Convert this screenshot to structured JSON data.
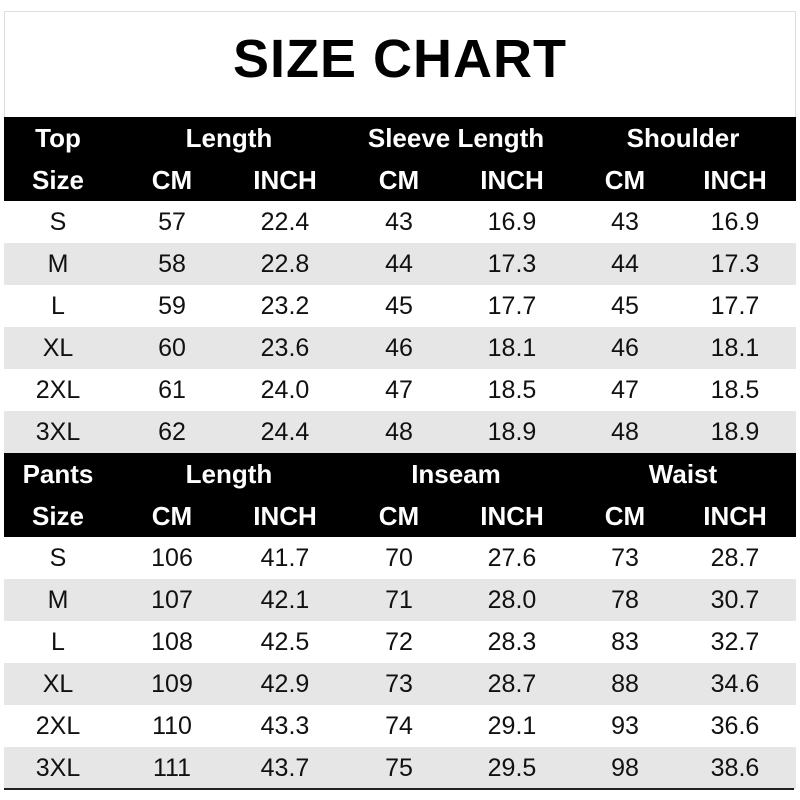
{
  "title": "SIZE CHART",
  "tables": [
    {
      "label_top": "Top",
      "label_bottom": "Size",
      "groups": [
        "Length",
        "Sleeve Length",
        "Shoulder"
      ],
      "units": [
        "CM",
        "INCH",
        "CM",
        "INCH",
        "CM",
        "INCH"
      ],
      "rows": [
        [
          "S",
          "57",
          "22.4",
          "43",
          "16.9",
          "43",
          "16.9"
        ],
        [
          "M",
          "58",
          "22.8",
          "44",
          "17.3",
          "44",
          "17.3"
        ],
        [
          "L",
          "59",
          "23.2",
          "45",
          "17.7",
          "45",
          "17.7"
        ],
        [
          "XL",
          "60",
          "23.6",
          "46",
          "18.1",
          "46",
          "18.1"
        ],
        [
          "2XL",
          "61",
          "24.0",
          "47",
          "18.5",
          "47",
          "18.5"
        ],
        [
          "3XL",
          "62",
          "24.4",
          "48",
          "18.9",
          "48",
          "18.9"
        ]
      ]
    },
    {
      "label_top": "Pants",
      "label_bottom": "Size",
      "groups": [
        "Length",
        "Inseam",
        "Waist"
      ],
      "units": [
        "CM",
        "INCH",
        "CM",
        "INCH",
        "CM",
        "INCH"
      ],
      "rows": [
        [
          "S",
          "106",
          "41.7",
          "70",
          "27.6",
          "73",
          "28.7"
        ],
        [
          "M",
          "107",
          "42.1",
          "71",
          "28.0",
          "78",
          "30.7"
        ],
        [
          "L",
          "108",
          "42.5",
          "72",
          "28.3",
          "83",
          "32.7"
        ],
        [
          "XL",
          "109",
          "42.9",
          "73",
          "28.7",
          "88",
          "34.6"
        ],
        [
          "2XL",
          "110",
          "43.3",
          "74",
          "29.1",
          "93",
          "36.6"
        ],
        [
          "3XL",
          "111",
          "43.7",
          "75",
          "29.5",
          "98",
          "38.6"
        ]
      ]
    }
  ]
}
